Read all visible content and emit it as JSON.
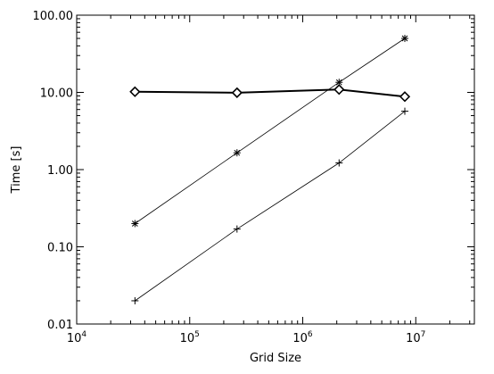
{
  "chart_data": {
    "type": "line",
    "title": "",
    "xlabel": "Grid Size",
    "ylabel": "Time [s]",
    "xscale": "log",
    "yscale": "log",
    "xlim": [
      10000,
      33000000
    ],
    "ylim": [
      0.01,
      100
    ],
    "grid": false,
    "legend": "none",
    "xticks": [
      {
        "value": 10000,
        "base": "10",
        "exp": "4"
      },
      {
        "value": 100000,
        "base": "10",
        "exp": "5"
      },
      {
        "value": 1000000,
        "base": "10",
        "exp": "6"
      },
      {
        "value": 10000000,
        "base": "10",
        "exp": "7"
      }
    ],
    "yticks": [
      {
        "value": 0.01,
        "label": "0.01"
      },
      {
        "value": 0.1,
        "label": "0.10"
      },
      {
        "value": 1,
        "label": "1.00"
      },
      {
        "value": 10,
        "label": "10.00"
      },
      {
        "value": 100,
        "label": "100.00"
      }
    ],
    "series": [
      {
        "marker": "diamond",
        "line": "thick",
        "color": "#000000",
        "x": [
          32768,
          262144,
          2097152,
          8000000
        ],
        "y": [
          10.2,
          9.9,
          10.9,
          8.8
        ]
      },
      {
        "marker": "asterisk",
        "line": "thin",
        "color": "#000000",
        "x": [
          32768,
          262144,
          2097152,
          8000000
        ],
        "y": [
          0.2,
          1.65,
          13.5,
          50
        ]
      },
      {
        "marker": "plus",
        "line": "thin",
        "color": "#000000",
        "x": [
          32768,
          262144,
          2097152,
          8000000
        ],
        "y": [
          0.02,
          0.17,
          1.22,
          5.7
        ]
      }
    ]
  }
}
